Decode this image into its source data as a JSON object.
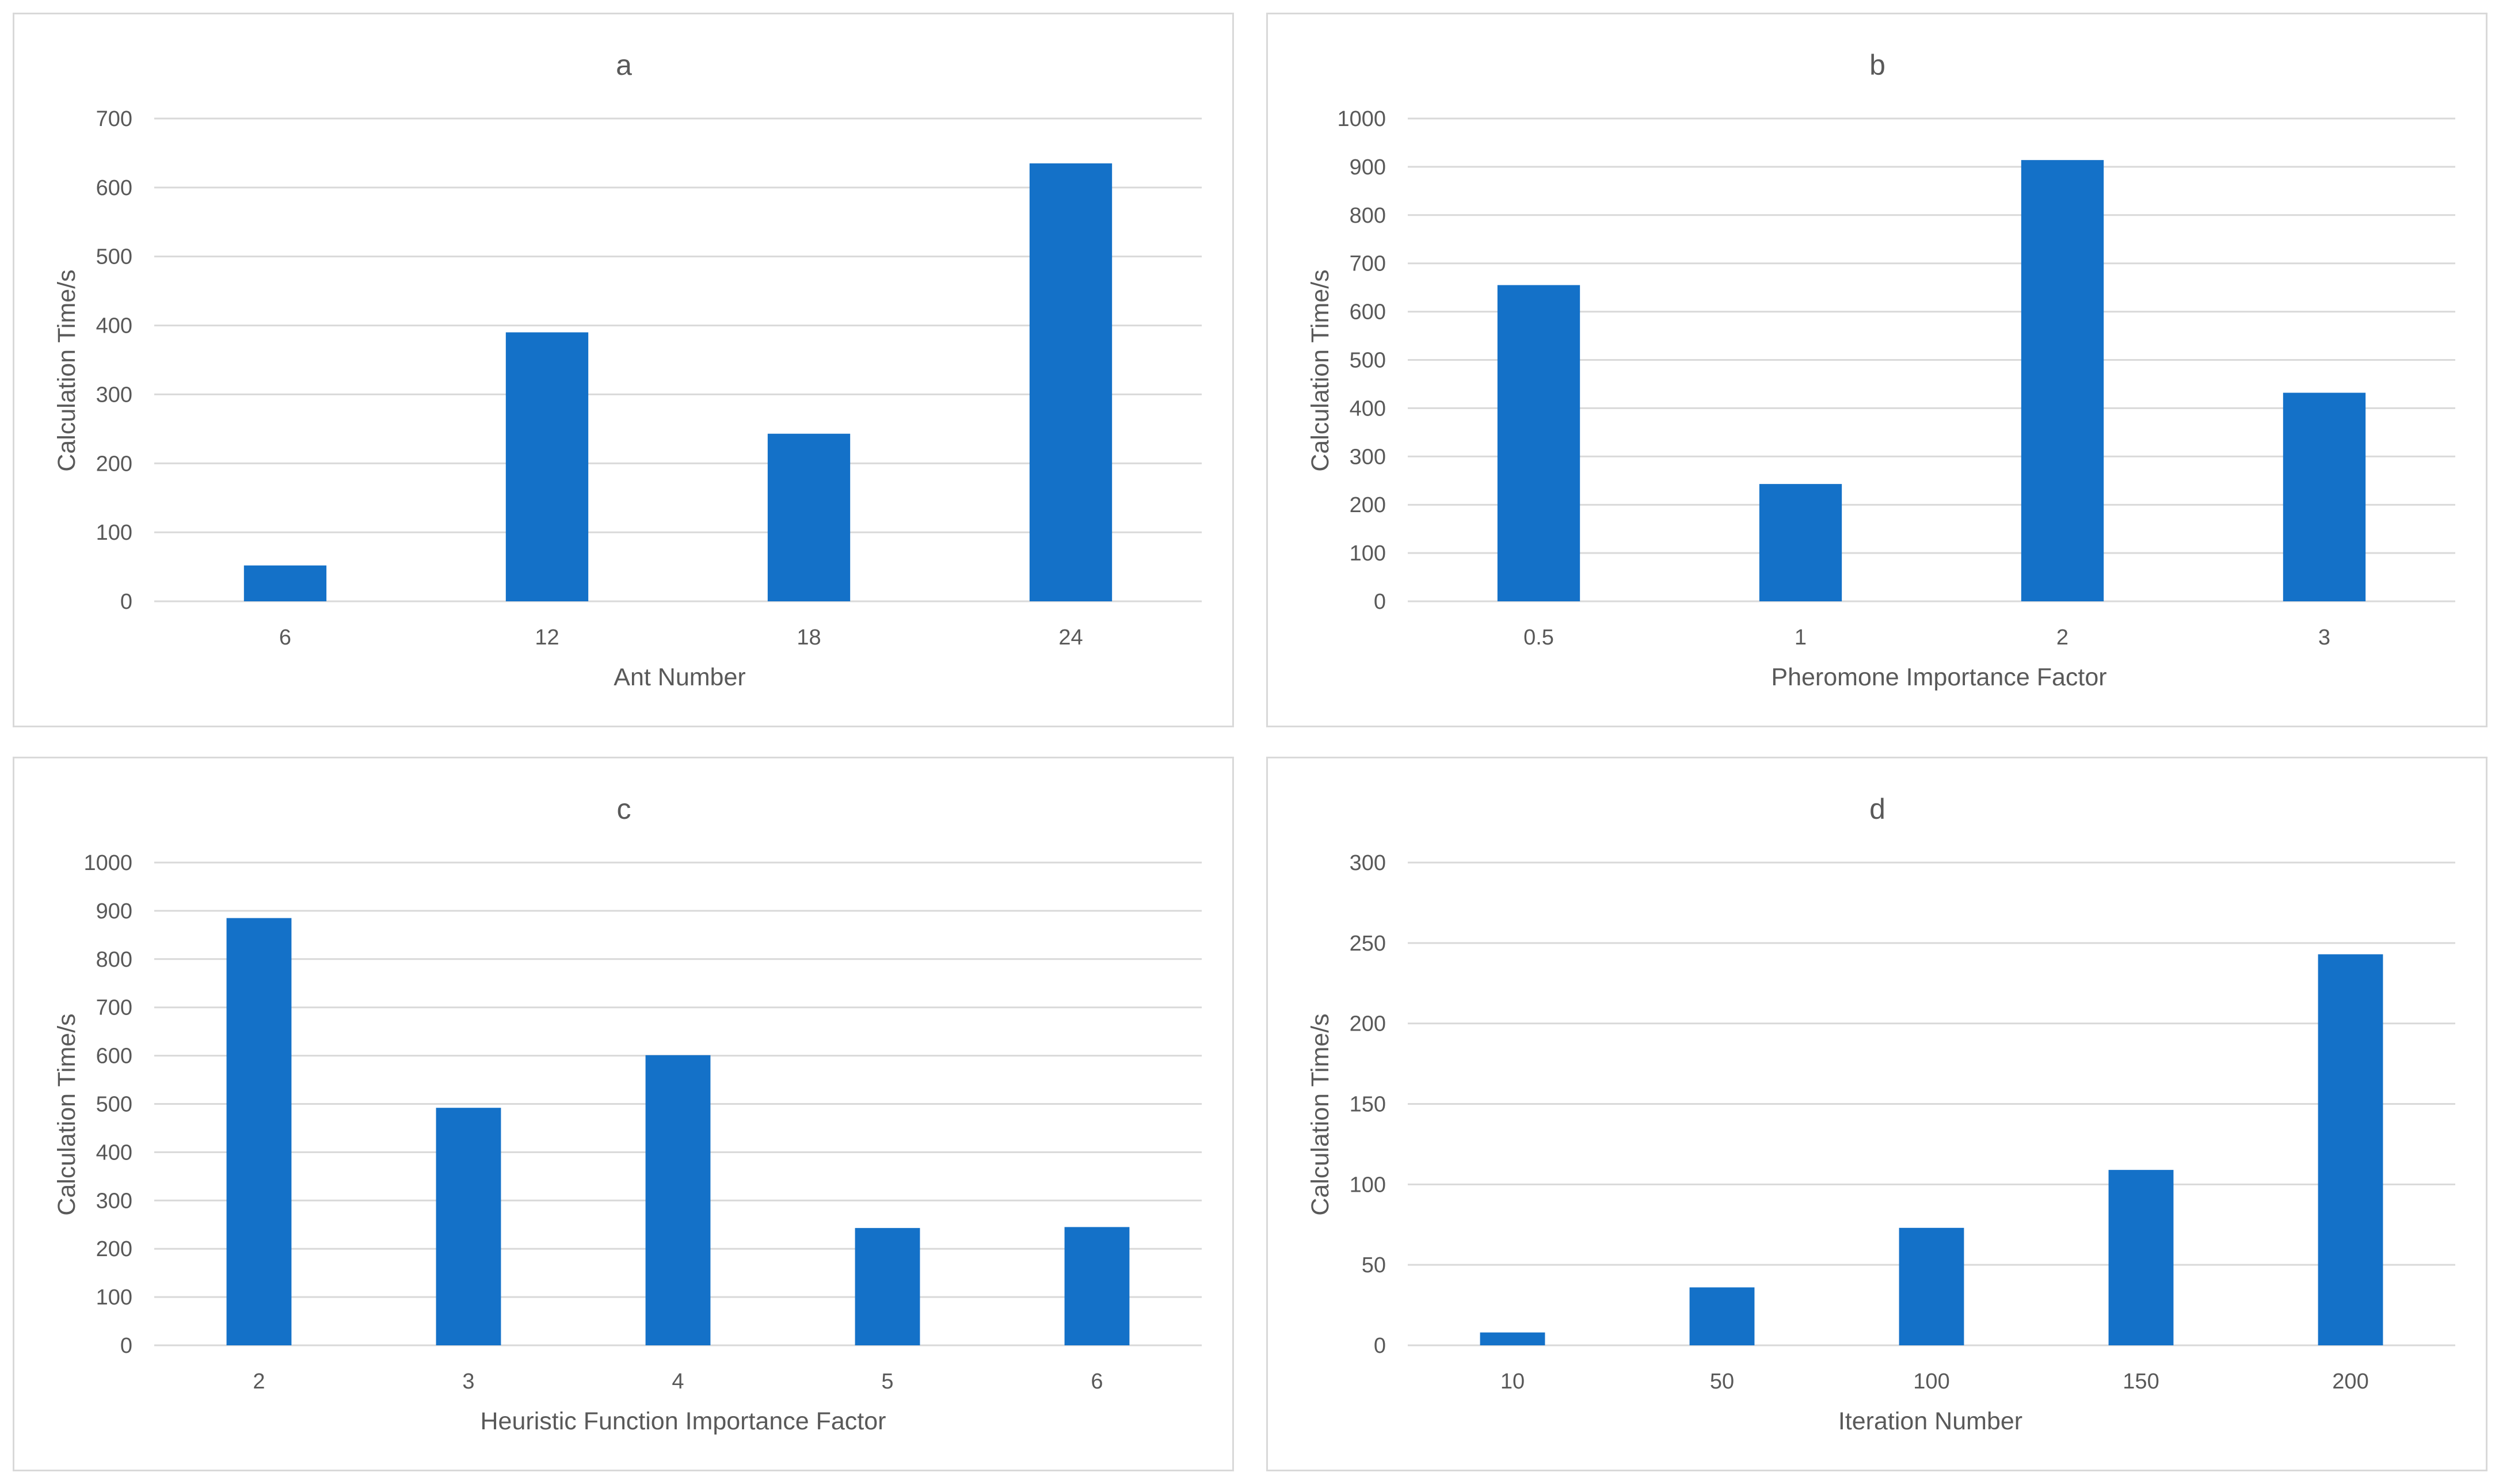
{
  "colors": {
    "bar": "#1471c8",
    "grid": "#d9d9d9",
    "text": "#595959"
  },
  "chart_data": [
    {
      "panel": "a",
      "type": "bar",
      "title": "a",
      "xlabel": "Ant Number",
      "ylabel": "Calculation Time/s",
      "categories": [
        "6",
        "12",
        "18",
        "24"
      ],
      "values": [
        52,
        390,
        243,
        635
      ],
      "ylim": [
        0,
        700
      ],
      "yticks": [
        0,
        100,
        200,
        300,
        400,
        500,
        600,
        700
      ],
      "ytick_labels": [
        "0",
        "100",
        "200",
        "300",
        "400",
        "500",
        "600",
        "700"
      ],
      "grid": true,
      "legend": "none"
    },
    {
      "panel": "b",
      "type": "bar",
      "title": "b",
      "xlabel": "Pheromone Importance Factor",
      "ylabel": "Calculation Time/s",
      "categories": [
        "0.5",
        "1",
        "2",
        "3"
      ],
      "values": [
        655,
        243,
        914,
        432
      ],
      "ylim": [
        0,
        1000
      ],
      "yticks": [
        0,
        100,
        200,
        300,
        400,
        500,
        600,
        700,
        800,
        900,
        1000
      ],
      "ytick_labels": [
        "0",
        "100",
        "200",
        "300",
        "400",
        "500",
        "600",
        "700",
        "800",
        "900",
        "1000"
      ],
      "grid": true,
      "legend": "none"
    },
    {
      "panel": "c",
      "type": "bar",
      "title": "c",
      "xlabel": "Heuristic Function Importance Factor",
      "ylabel": "Calculation Time/s",
      "categories": [
        "2",
        "3",
        "4",
        "5",
        "6"
      ],
      "values": [
        885,
        492,
        601,
        243,
        245
      ],
      "ylim": [
        0,
        1000
      ],
      "yticks": [
        0,
        100,
        200,
        300,
        400,
        500,
        600,
        700,
        800,
        900,
        1000
      ],
      "ytick_labels": [
        "0",
        "100",
        "200",
        "300",
        "400",
        "500",
        "600",
        "700",
        "800",
        "900",
        "1000"
      ],
      "grid": true,
      "legend": "none"
    },
    {
      "panel": "d",
      "type": "bar",
      "title": "d",
      "xlabel": "Iteration Number",
      "ylabel": "Calculation Time/s",
      "categories": [
        "10",
        "50",
        "100",
        "150",
        "200"
      ],
      "values": [
        8,
        36,
        73,
        109,
        243
      ],
      "ylim": [
        0,
        300
      ],
      "yticks": [
        0,
        50,
        100,
        150,
        200,
        250,
        300
      ],
      "ytick_labels": [
        "0",
        "50",
        "100",
        "150",
        "200",
        "250",
        "300"
      ],
      "grid": true,
      "legend": "none"
    }
  ]
}
